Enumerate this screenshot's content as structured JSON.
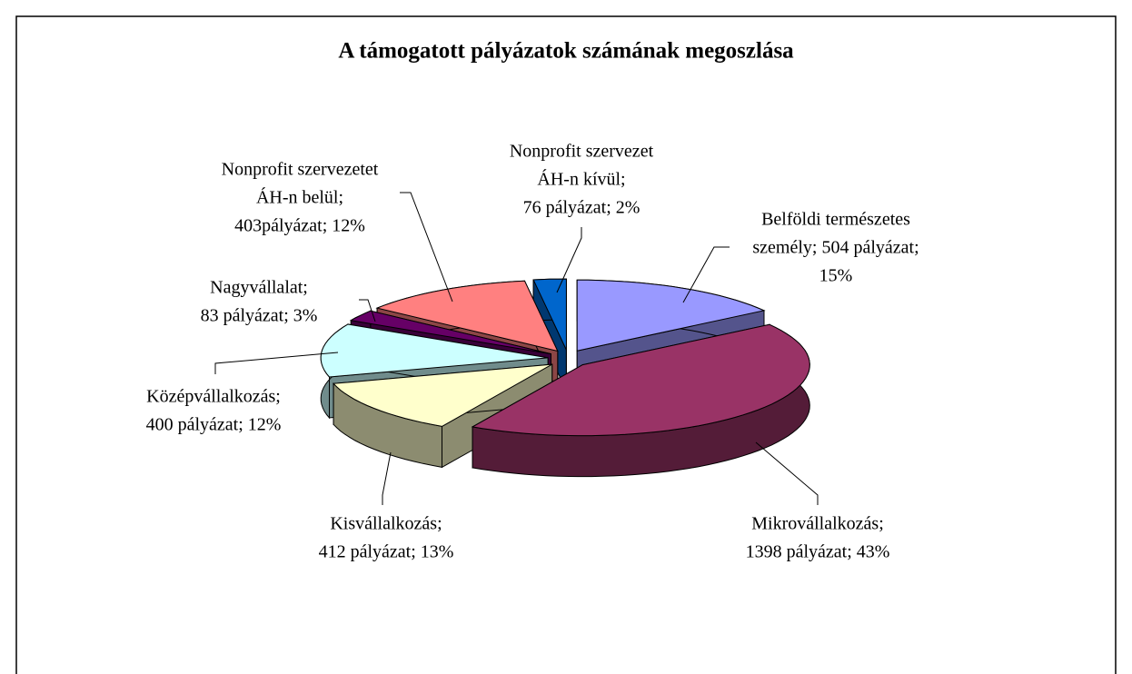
{
  "chart_data": {
    "type": "pie3d",
    "title": "A támogatott pályázatok számának megoszlása",
    "values": [
      504,
      1398,
      412,
      400,
      83,
      403,
      76
    ],
    "value_labels": [
      [
        "Belföldi természetes",
        "személy; 504 pályázat;",
        "15%"
      ],
      [
        "Mikrovállalkozás;",
        "1398 pályázat; 43%"
      ],
      [
        "Kisvállalkozás;",
        "412 pályázat; 13%"
      ],
      [
        "Középvállalkozás;",
        "400 pályázat; 12%"
      ],
      [
        "Nagyvállalat;",
        "83 pályázat; 3%"
      ],
      [
        "Nonprofit szervezetet",
        "ÁH-n belül;",
        "403pályázat; 12%"
      ],
      [
        "Nonprofit szervezet",
        "ÁH-n kívül;",
        "76 pályázat; 2%"
      ]
    ],
    "colors": [
      "#9999ff",
      "#993366",
      "#ffffcc",
      "#ccffff",
      "#660066",
      "#ff8080",
      "#0066cc"
    ]
  }
}
